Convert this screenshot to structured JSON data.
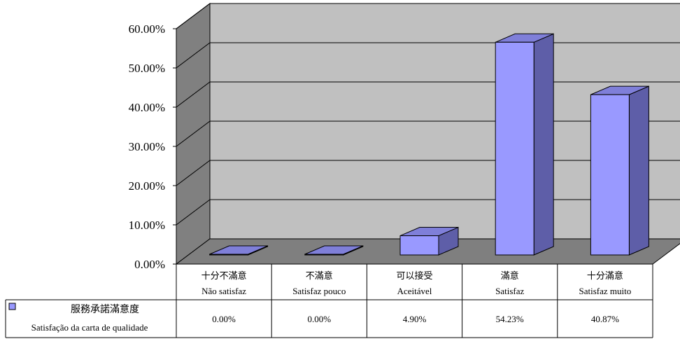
{
  "chart_data": {
    "type": "bar",
    "title": "",
    "categories": [
      {
        "zh": "十分不滿意",
        "pt": "Não satisfaz"
      },
      {
        "zh": "不滿意",
        "pt": "Satisfaz pouco"
      },
      {
        "zh": "可以接受",
        "pt": "Aceitável"
      },
      {
        "zh": "滿意",
        "pt": "Satisfaz"
      },
      {
        "zh": "十分滿意",
        "pt": "Satisfaz muito"
      }
    ],
    "series": [
      {
        "name_zh": "服務承諾滿意度",
        "name_pt": "Satisfação da carta de qualidade",
        "values": [
          0.0,
          0.0,
          4.9,
          54.23,
          40.87
        ],
        "labels": [
          "0.00%",
          "0.00%",
          "4.90%",
          "54.23%",
          "40.87%"
        ],
        "color": "#9999ff"
      }
    ],
    "y_ticks": [
      "0.00%",
      "10.00%",
      "20.00%",
      "30.00%",
      "40.00%",
      "50.00%",
      "60.00%"
    ],
    "ylim": [
      0,
      60
    ],
    "grid": true,
    "legend": "data-table-left",
    "colors": {
      "wall": "#c0c0c0",
      "side_wall": "#808080",
      "floor": "#7f7f7f",
      "bar_front": "#9999ff",
      "bar_top": "#7f7fd9",
      "bar_side": "#5e5ea8"
    }
  }
}
